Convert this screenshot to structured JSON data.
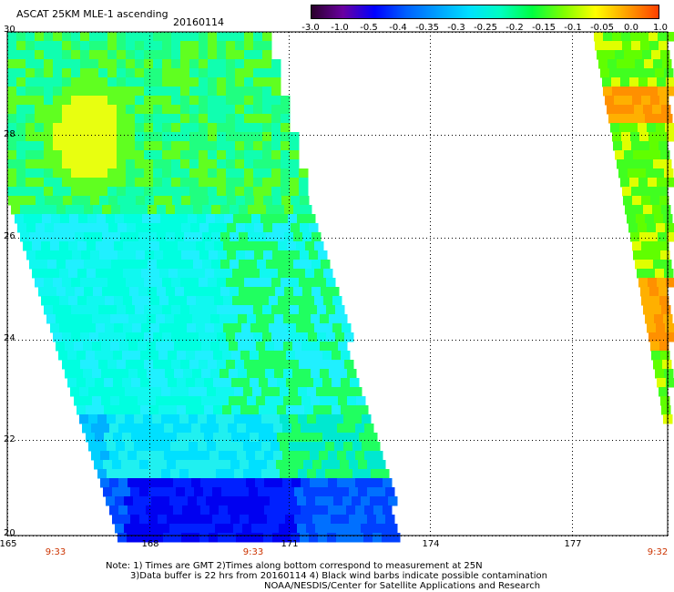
{
  "title": "ASCAT 25KM MLE-1 ascending",
  "date": "20160114",
  "colorbar": {
    "labels": [
      "-3.0",
      "-1.0",
      "-0.5",
      "-0.4",
      "-0.35",
      "-0.3",
      "-0.25",
      "-0.2",
      "-0.15",
      "-0.1",
      "-0.05",
      "0.0",
      "1.0"
    ],
    "colors": [
      "#2a002a",
      "#6a00a0",
      "#0000ff",
      "#0060ff",
      "#00a0ff",
      "#00e0ff",
      "#00ffc0",
      "#00ff40",
      "#80ff00",
      "#ffff00",
      "#ffa000",
      "#ff4000"
    ]
  },
  "latitudes": [
    "30",
    "28",
    "26",
    "24",
    "22",
    "20"
  ],
  "longitudes": [
    "165",
    "168",
    "171",
    "174",
    "177"
  ],
  "times": [
    "9:33",
    "9:33",
    "9:32"
  ],
  "notes": {
    "line1": "Note: 1) Times are GMT 2)Times along bottom correspond to measurement at 25N",
    "line2": "3)Data buffer is 22 hrs from 20160114 4) Black wind barbs indicate possible contamination",
    "line3": "NOAA/NESDIS/Center for Satellite Applications and Research"
  }
}
